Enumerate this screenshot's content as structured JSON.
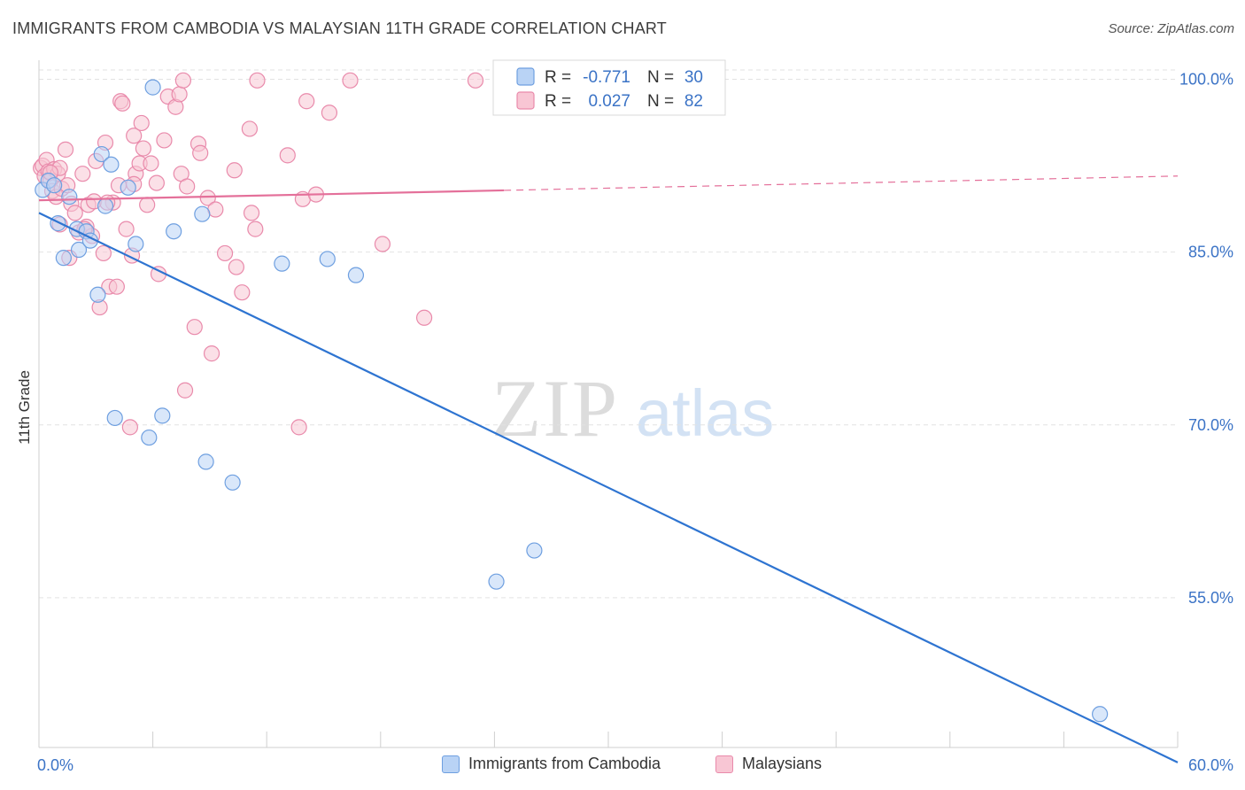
{
  "title": "IMMIGRANTS FROM CAMBODIA VS MALAYSIAN 11TH GRADE CORRELATION CHART",
  "source": "Source: ZipAtlas.com",
  "watermark": {
    "zip": "ZIP",
    "atlas": "atlas"
  },
  "colors": {
    "blue_fill": "#b9d3f5",
    "blue_stroke": "#6e9fe0",
    "blue_line": "#2e74d1",
    "pink_fill": "#f8c6d4",
    "pink_stroke": "#e98aab",
    "pink_line": "#e4709a",
    "tick_label": "#3b73c6",
    "grid": "#e2e2e2"
  },
  "legend_stats": [
    {
      "r_label": "R =",
      "r_value": "-0.771",
      "n_label": "N =",
      "n_value": "30"
    },
    {
      "r_label": "R =",
      "r_value": "0.027",
      "n_label": "N =",
      "n_value": "82"
    }
  ],
  "legend_bottom": [
    "Immigrants from Cambodia",
    "Malaysians"
  ],
  "chart_data": {
    "type": "scatter",
    "title": "IMMIGRANTS FROM CAMBODIA VS MALAYSIAN 11TH GRADE CORRELATION CHART",
    "xlabel": "",
    "ylabel": "11th Grade",
    "xlim": [
      0,
      60
    ],
    "ylim": [
      42,
      101.5
    ],
    "x_tick_labels": [
      "0.0%",
      "60.0%"
    ],
    "y_ticks": [
      55,
      70,
      85,
      100
    ],
    "y_tick_labels": [
      "55.0%",
      "70.0%",
      "85.0%",
      "100.0%"
    ],
    "grid": true,
    "legend_position": "top-center",
    "series": [
      {
        "name": "Immigrants from Cambodia",
        "r": -0.771,
        "n": 30,
        "points": [
          [
            0.2,
            90.4
          ],
          [
            0.5,
            91.2
          ],
          [
            0.8,
            90.8
          ],
          [
            1.0,
            87.5
          ],
          [
            1.3,
            84.5
          ],
          [
            1.6,
            89.8
          ],
          [
            2.0,
            87.0
          ],
          [
            2.1,
            85.2
          ],
          [
            2.5,
            86.8
          ],
          [
            2.7,
            86.0
          ],
          [
            3.1,
            81.3
          ],
          [
            3.3,
            93.5
          ],
          [
            3.5,
            89.0
          ],
          [
            3.8,
            92.6
          ],
          [
            4.0,
            70.6
          ],
          [
            4.7,
            90.6
          ],
          [
            5.1,
            85.7
          ],
          [
            5.8,
            68.9
          ],
          [
            6.0,
            99.3
          ],
          [
            6.5,
            70.8
          ],
          [
            7.1,
            86.8
          ],
          [
            8.6,
            88.3
          ],
          [
            8.8,
            66.8
          ],
          [
            10.2,
            65.0
          ],
          [
            12.8,
            84.0
          ],
          [
            15.2,
            84.4
          ],
          [
            16.7,
            83.0
          ],
          [
            24.1,
            56.4
          ],
          [
            26.1,
            59.1
          ],
          [
            55.9,
            44.9
          ]
        ],
        "trend": {
          "x": [
            0,
            60
          ],
          "y": [
            88.4,
            40.7
          ]
        }
      },
      {
        "name": "Malaysians",
        "r": 0.027,
        "n": 82,
        "points": [
          [
            0.1,
            92.3
          ],
          [
            0.2,
            92.5
          ],
          [
            0.3,
            91.6
          ],
          [
            0.4,
            93.0
          ],
          [
            0.5,
            92.0
          ],
          [
            0.6,
            91.2
          ],
          [
            0.7,
            90.3
          ],
          [
            0.8,
            92.2
          ],
          [
            0.9,
            89.8
          ],
          [
            1.0,
            91.8
          ],
          [
            1.1,
            87.4
          ],
          [
            1.2,
            90.5
          ],
          [
            1.4,
            93.9
          ],
          [
            1.5,
            90.8
          ],
          [
            1.6,
            84.5
          ],
          [
            1.7,
            89.2
          ],
          [
            1.9,
            88.4
          ],
          [
            2.1,
            86.7
          ],
          [
            2.3,
            91.8
          ],
          [
            2.5,
            87.2
          ],
          [
            2.6,
            89.1
          ],
          [
            2.8,
            86.4
          ],
          [
            2.9,
            89.4
          ],
          [
            3.0,
            92.9
          ],
          [
            3.2,
            80.2
          ],
          [
            3.4,
            84.9
          ],
          [
            3.5,
            94.5
          ],
          [
            3.7,
            82.0
          ],
          [
            3.9,
            89.3
          ],
          [
            4.1,
            82.0
          ],
          [
            4.2,
            90.8
          ],
          [
            4.3,
            98.1
          ],
          [
            4.4,
            97.9
          ],
          [
            4.6,
            87.0
          ],
          [
            4.8,
            69.8
          ],
          [
            4.9,
            84.7
          ],
          [
            5.0,
            95.1
          ],
          [
            5.1,
            91.8
          ],
          [
            5.3,
            92.7
          ],
          [
            5.4,
            96.2
          ],
          [
            5.5,
            94.0
          ],
          [
            5.7,
            89.1
          ],
          [
            5.9,
            92.7
          ],
          [
            6.2,
            91.0
          ],
          [
            6.3,
            83.1
          ],
          [
            6.6,
            94.7
          ],
          [
            6.8,
            98.5
          ],
          [
            7.2,
            97.6
          ],
          [
            7.4,
            98.7
          ],
          [
            7.5,
            91.8
          ],
          [
            7.6,
            99.9
          ],
          [
            7.7,
            73.0
          ],
          [
            7.8,
            90.7
          ],
          [
            8.2,
            78.5
          ],
          [
            8.4,
            94.4
          ],
          [
            8.5,
            93.6
          ],
          [
            8.9,
            89.7
          ],
          [
            9.1,
            76.2
          ],
          [
            9.3,
            88.7
          ],
          [
            9.8,
            84.9
          ],
          [
            10.3,
            92.1
          ],
          [
            10.4,
            83.7
          ],
          [
            10.7,
            81.5
          ],
          [
            11.1,
            95.7
          ],
          [
            11.2,
            88.4
          ],
          [
            11.4,
            87.0
          ],
          [
            11.5,
            99.9
          ],
          [
            13.1,
            93.4
          ],
          [
            13.7,
            69.8
          ],
          [
            13.9,
            89.6
          ],
          [
            14.1,
            98.1
          ],
          [
            14.6,
            90.0
          ],
          [
            15.3,
            97.1
          ],
          [
            16.4,
            99.9
          ],
          [
            18.1,
            85.7
          ],
          [
            20.3,
            79.3
          ],
          [
            23.0,
            99.9
          ],
          [
            1.1,
            92.3
          ],
          [
            0.6,
            91.9
          ],
          [
            2.4,
            87.0
          ],
          [
            3.6,
            89.3
          ],
          [
            5.0,
            90.9
          ]
        ],
        "trend": {
          "x": [
            0,
            60
          ],
          "y": [
            89.5,
            91.6
          ]
        },
        "trend_solid_until_x": 24.5
      }
    ]
  }
}
